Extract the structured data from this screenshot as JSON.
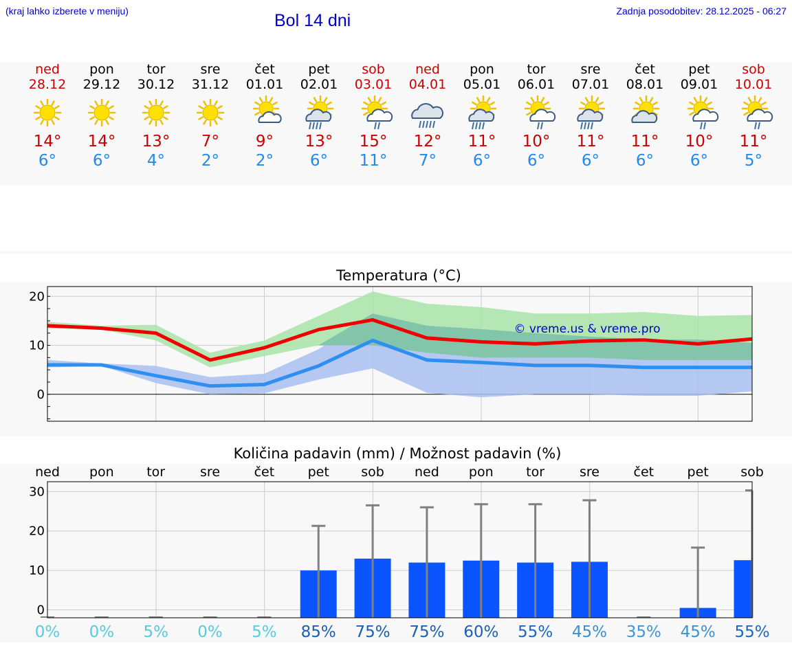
{
  "header": {
    "note": "(kraj lahko izberete v meniju)",
    "title": "Bol 14 dni",
    "updated": "Zadnja posodobitev: 28.12.2025 - 06:27"
  },
  "days": [
    {
      "name": "ned",
      "date": "28.12",
      "weekend": true,
      "icon": "sun",
      "tmax": "14°",
      "tmin": "6°"
    },
    {
      "name": "pon",
      "date": "29.12",
      "weekend": false,
      "icon": "sun",
      "tmax": "14°",
      "tmin": "6°"
    },
    {
      "name": "tor",
      "date": "30.12",
      "weekend": false,
      "icon": "sun",
      "tmax": "13°",
      "tmin": "4°"
    },
    {
      "name": "sre",
      "date": "31.12",
      "weekend": false,
      "icon": "sun",
      "tmax": "7°",
      "tmin": "2°"
    },
    {
      "name": "čet",
      "date": "01.01",
      "weekend": false,
      "icon": "sun-cloud",
      "tmax": "9°",
      "tmin": "2°"
    },
    {
      "name": "pet",
      "date": "02.01",
      "weekend": false,
      "icon": "sun-cloud-rain-heavy",
      "tmax": "13°",
      "tmin": "6°"
    },
    {
      "name": "sob",
      "date": "03.01",
      "weekend": true,
      "icon": "sun-cloud-rain",
      "tmax": "15°",
      "tmin": "11°"
    },
    {
      "name": "ned",
      "date": "04.01",
      "weekend": true,
      "icon": "cloud-rain-heavy",
      "tmax": "12°",
      "tmin": "7°"
    },
    {
      "name": "pon",
      "date": "05.01",
      "weekend": false,
      "icon": "sun-cloud-rain-heavy",
      "tmax": "11°",
      "tmin": "6°"
    },
    {
      "name": "tor",
      "date": "06.01",
      "weekend": false,
      "icon": "sun-cloud-rain",
      "tmax": "10°",
      "tmin": "6°"
    },
    {
      "name": "sre",
      "date": "07.01",
      "weekend": false,
      "icon": "sun-cloud-rain-heavy",
      "tmax": "11°",
      "tmin": "6°"
    },
    {
      "name": "čet",
      "date": "08.01",
      "weekend": false,
      "icon": "sun-cloud-grey",
      "tmax": "11°",
      "tmin": "6°"
    },
    {
      "name": "pet",
      "date": "09.01",
      "weekend": false,
      "icon": "sun-cloud-rain",
      "tmax": "10°",
      "tmin": "6°"
    },
    {
      "name": "sob",
      "date": "10.01",
      "weekend": true,
      "icon": "sun-cloud-rain",
      "tmax": "11°",
      "tmin": "5°"
    }
  ],
  "colors": {
    "max_line": "#ee0000",
    "min_line": "#2e8ff0",
    "max_band": "#a8e4a8",
    "min_band": "#a8c0f0",
    "overlap_band": "#7cc0a8",
    "bar": "#0a55ff",
    "error": "#808080",
    "weekend": "#cc0000",
    "title_blue": "#0000cc"
  },
  "chart_data": [
    {
      "type": "line",
      "title": "Temperatura (°C)",
      "watermark": "© vreme.us & vreme.pro",
      "ylim": [
        -5.5,
        22
      ],
      "yticks": [
        0,
        10,
        20
      ],
      "ytick_labels": [
        "0",
        "10",
        "20"
      ],
      "x": [
        0,
        1,
        2,
        3,
        4,
        5,
        6,
        7,
        8,
        9,
        10,
        11,
        12,
        13
      ],
      "series": [
        {
          "name": "max",
          "values": [
            14,
            13.5,
            12.5,
            7,
            9.5,
            13.2,
            15.2,
            11.5,
            10.7,
            10.3,
            10.9,
            11.1,
            10.3,
            11.3
          ]
        },
        {
          "name": "min",
          "values": [
            6,
            6,
            3.8,
            1.7,
            2,
            5.8,
            11,
            7,
            6.5,
            5.9,
            5.9,
            5.5,
            5.5,
            5.5
          ]
        }
      ],
      "bands": [
        {
          "name": "max_range",
          "low": [
            13.5,
            13.2,
            11,
            5.5,
            7.8,
            10,
            10,
            8.5,
            7.5,
            7.5,
            7.5,
            7,
            7,
            7
          ],
          "high": [
            14.8,
            14,
            14.2,
            8.5,
            11,
            16,
            21,
            18.5,
            17.8,
            16.5,
            16.5,
            16.8,
            16,
            16.2
          ]
        },
        {
          "name": "min_range",
          "low": [
            5.5,
            5.8,
            2.3,
            0,
            0.2,
            3,
            5.3,
            0.3,
            -0.6,
            0,
            0,
            -0.3,
            -0.3,
            0.6
          ],
          "high": [
            7,
            6.3,
            5.8,
            3.5,
            4.2,
            9.2,
            16.5,
            14,
            13.3,
            12.5,
            11.8,
            11.2,
            11.2,
            10.5
          ]
        }
      ]
    },
    {
      "type": "bar",
      "title": "Količina padavin (mm) / Možnost padavin (%)",
      "categories": [
        "ned",
        "pon",
        "tor",
        "sre",
        "čet",
        "pet",
        "sob",
        "ned",
        "pon",
        "tor",
        "sre",
        "čet",
        "pet",
        "sob"
      ],
      "values": [
        0,
        0,
        0,
        0,
        0,
        10,
        13,
        12,
        12.5,
        12,
        12.2,
        0,
        0.5,
        12.6
      ],
      "error_high": [
        0,
        0,
        0,
        0,
        0,
        21.3,
        26.5,
        26,
        26.8,
        26.8,
        27.8,
        0,
        15.8,
        30.3
      ],
      "probability": [
        "0%",
        "0%",
        "5%",
        "0%",
        "5%",
        "85%",
        "75%",
        "75%",
        "60%",
        "55%",
        "45%",
        "35%",
        "45%",
        "55%"
      ],
      "prob_colors": [
        "#55ccdd",
        "#55ccdd",
        "#55ccdd",
        "#55ccdd",
        "#55ccdd",
        "#1a5fb0",
        "#1a5fb0",
        "#1a5fb0",
        "#1a60b8",
        "#1a66c0",
        "#3a90d0",
        "#3a98d8",
        "#3a90d0",
        "#1a66c0"
      ],
      "ylim": [
        -2,
        32.5
      ],
      "yticks": [
        0,
        10,
        20,
        30
      ],
      "ytick_labels": [
        "0",
        "10",
        "20",
        "30"
      ]
    }
  ]
}
